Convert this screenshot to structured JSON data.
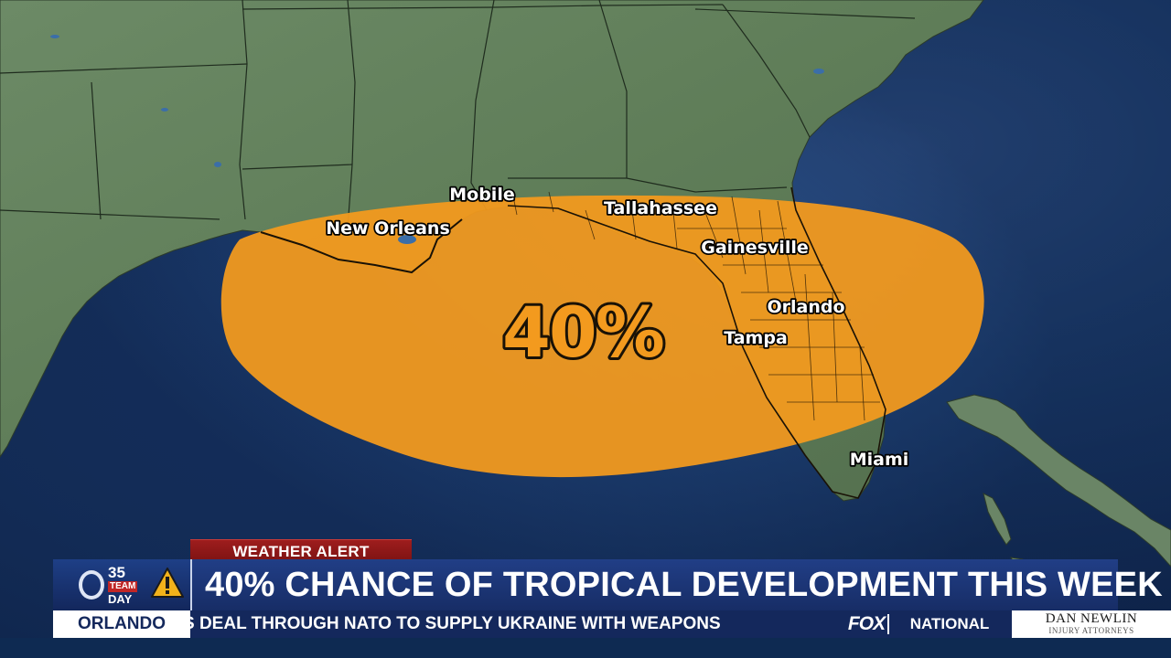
{
  "map": {
    "probability_label": "40%",
    "outlook_color": "#f39a1e",
    "land_color": "#5f7f5a",
    "water_color": "#1d3d6e",
    "cities": [
      {
        "name": "New Orleans"
      },
      {
        "name": "Mobile"
      },
      {
        "name": "Tallahassee"
      },
      {
        "name": "Gainesville"
      },
      {
        "name": "Orlando"
      },
      {
        "name": "Tampa"
      },
      {
        "name": "Miami"
      }
    ]
  },
  "lower_third": {
    "alert_tag": "WEATHER ALERT",
    "station_logo": {
      "top": "35",
      "middle": "TEAM",
      "bottom": "DAY",
      "icon": "warning-triangle-icon"
    },
    "headline": "40% CHANCE OF TROPICAL DEVELOPMENT THIS WEEK",
    "ticker": {
      "location": "ORLANDO",
      "text": "S DEAL THROUGH NATO TO SUPPLY UKRAINE WITH WEAPONS",
      "network": "FOX",
      "region": "NATIONAL",
      "sponsor_name": "DAN NEWLIN",
      "sponsor_tagline": "INJURY ATTORNEYS"
    },
    "colors": {
      "alert_red": "#9e1d1d",
      "headline_blue": "#213e86",
      "ticker_blue": "#14285c"
    }
  }
}
